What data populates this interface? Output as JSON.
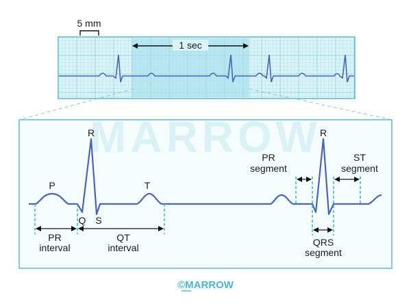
{
  "strip": {
    "scale_label": "5 mm",
    "time_label": "1 sec"
  },
  "detail": {
    "watermark": "MARROW",
    "waves": {
      "p": "P",
      "q": "Q",
      "r": "R",
      "s": "S",
      "t": "T",
      "r2": "R"
    },
    "intervals": {
      "pr_line1": "PR",
      "pr_line2": "interval",
      "qt_line1": "QT",
      "qt_line2": "interval"
    },
    "segments": {
      "pr_line1": "PR",
      "pr_line2": "segment",
      "st_line1": "ST",
      "st_line2": "segment",
      "qrs_line1": "QRS",
      "qrs_line2": "segment"
    }
  },
  "footer": {
    "brand": "©MARROW"
  },
  "colors": {
    "paper": "#d9f3f7",
    "grid": "#9fd9e5",
    "trace": "#4a63b8",
    "frame": "#5fb8cc",
    "highlight": "#9fdcec",
    "dashed": "#3fb8d8",
    "bracket": "#111111",
    "footer_text": "#49b5d0"
  }
}
